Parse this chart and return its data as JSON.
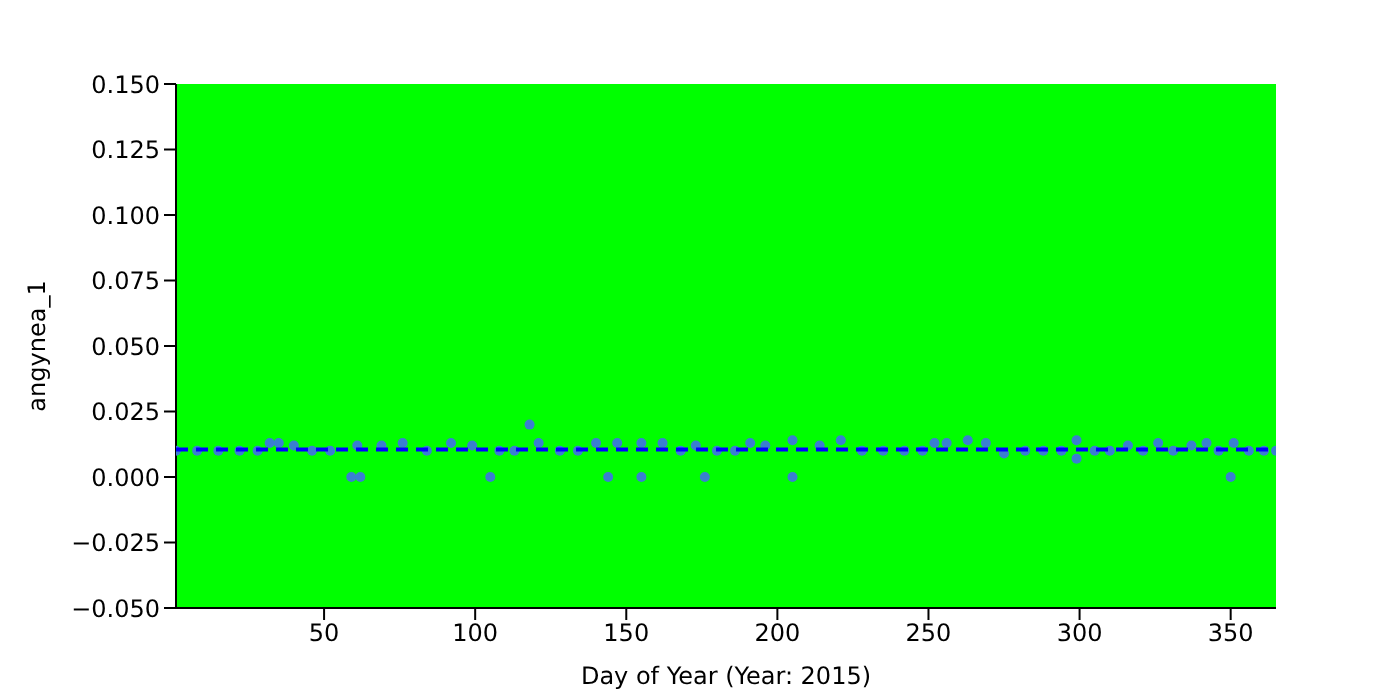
{
  "chart_data": {
    "type": "scatter",
    "xlabel": "Day of Year (Year: 2015)",
    "ylabel": "angynea_1",
    "xlim": [
      1,
      365
    ],
    "xticks": [
      50,
      100,
      150,
      200,
      250,
      300,
      350
    ],
    "ylim": [
      -0.05,
      0.15
    ],
    "yticks": [
      {
        "value": -0.05,
        "label": "−0.050"
      },
      {
        "value": -0.025,
        "label": "−0.025"
      },
      {
        "value": 0,
        "label": "0.000"
      },
      {
        "value": 0.025,
        "label": "0.025"
      },
      {
        "value": 0.05,
        "label": "0.050"
      },
      {
        "value": 0.075,
        "label": "0.075"
      },
      {
        "value": 0.1,
        "label": "0.100"
      },
      {
        "value": 0.125,
        "label": "0.125"
      },
      {
        "value": 0.15,
        "label": "0.150"
      }
    ],
    "grid": false,
    "series": [
      {
        "color": "#3a7fd0",
        "marker": "circle",
        "x": [
          1,
          8,
          15,
          22,
          28,
          32,
          35,
          40,
          46,
          52,
          59,
          61,
          62,
          69,
          76,
          84,
          92,
          99,
          105,
          108,
          113,
          118,
          121,
          128,
          134,
          140,
          144,
          147,
          155,
          155,
          162,
          168,
          173,
          176,
          180,
          186,
          191,
          196,
          205,
          205,
          214,
          221,
          228,
          235,
          242,
          248,
          252,
          256,
          263,
          269,
          275,
          282,
          288,
          294,
          299,
          299,
          305,
          310,
          316,
          321,
          326,
          331,
          337,
          342,
          346,
          350,
          351,
          356,
          361,
          365
        ],
        "values": [
          0.01,
          0.01,
          0.01,
          0.01,
          0.01,
          0.013,
          0.013,
          0.012,
          0.01,
          0.01,
          0,
          0.012,
          0,
          0.012,
          0.013,
          0.01,
          0.013,
          0.012,
          0,
          0.01,
          0.01,
          0.02,
          0.013,
          0.01,
          0.01,
          0.013,
          0,
          0.013,
          0.013,
          0,
          0.013,
          0.01,
          0.012,
          0,
          0.01,
          0.01,
          0.013,
          0.012,
          0.014,
          0,
          0.012,
          0.014,
          0.01,
          0.01,
          0.01,
          0.01,
          0.013,
          0.013,
          0.014,
          0.013,
          0.009,
          0.01,
          0.01,
          0.01,
          0.014,
          0.007,
          0.01,
          0.01,
          0.012,
          0.01,
          0.013,
          0.01,
          0.012,
          0.013,
          0.01,
          0,
          0.013,
          0.01,
          0.01,
          0.01
        ]
      },
      {
        "type": "line",
        "color": "#0000ff",
        "line_style": "dashed",
        "marker": "none",
        "x": [
          1,
          365
        ],
        "values": [
          0.0105,
          0.0105
        ]
      }
    ]
  }
}
